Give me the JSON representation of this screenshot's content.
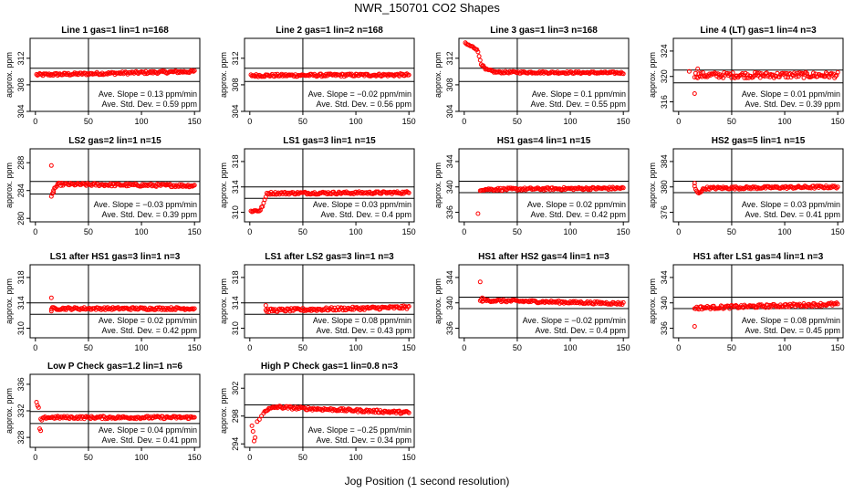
{
  "figure_title": "NWR_150701   CO2 Shapes",
  "x_axis_label": "Jog Position (1 second resolution)",
  "y_axis_label": "approx. ppm",
  "slope_label": "Ave. Slope =",
  "slope_unit": "ppm/min",
  "std_label": "Ave. Std. Dev. =",
  "std_unit": "ppm",
  "colors": {
    "points": "#ff0000",
    "axes": "#000000",
    "background": "#ffffff"
  },
  "chart_data": [
    {
      "type": "scatter",
      "title": "Line 1 gas=1 lin=1 n=168",
      "xlim": [
        -5,
        155
      ],
      "ylim": [
        304,
        315
      ],
      "xticks": [
        0,
        50,
        100,
        150
      ],
      "yticks": [
        304,
        308,
        312
      ],
      "hlines": [
        310.5,
        308.5
      ],
      "vline": 50,
      "slope": "0.13",
      "std": "0.59",
      "x_start": 1,
      "x_end": 150,
      "x_step": 1,
      "profile": [
        [
          1,
          309.5
        ],
        [
          150,
          310.0
        ]
      ],
      "noise": 0.2
    },
    {
      "type": "scatter",
      "title": "Line 2 gas=1 lin=2 n=168",
      "xlim": [
        -5,
        155
      ],
      "ylim": [
        304,
        315
      ],
      "xticks": [
        0,
        50,
        100,
        150
      ],
      "yticks": [
        304,
        308,
        312
      ],
      "hlines": [
        310.5,
        308.5
      ],
      "vline": 50,
      "slope": "−0.02",
      "std": "0.56",
      "x_start": 1,
      "x_end": 150,
      "x_step": 1,
      "profile": [
        [
          1,
          309.4
        ],
        [
          150,
          309.5
        ]
      ],
      "noise": 0.2
    },
    {
      "type": "scatter",
      "title": "Line 3 gas=1 lin=3 n=168",
      "xlim": [
        -5,
        155
      ],
      "ylim": [
        304,
        315
      ],
      "xticks": [
        0,
        50,
        100,
        150
      ],
      "yticks": [
        304,
        308,
        312
      ],
      "hlines": [
        310.5,
        308.5
      ],
      "vline": 50,
      "slope": "0.1",
      "std": "0.55",
      "x_start": 1,
      "x_end": 150,
      "x_step": 1,
      "profile": [
        [
          1,
          314.2
        ],
        [
          12,
          313.4
        ],
        [
          16,
          311.2
        ],
        [
          20,
          310.3
        ],
        [
          30,
          309.9
        ],
        [
          150,
          309.8
        ]
      ],
      "noise": 0.15
    },
    {
      "type": "scatter",
      "title": "Line 4 (LT) gas=1 lin=4 n=3",
      "xlim": [
        -5,
        155
      ],
      "ylim": [
        314.5,
        326
      ],
      "xticks": [
        0,
        50,
        100,
        150
      ],
      "yticks": [
        316,
        320,
        324
      ],
      "hlines": [
        321.0,
        319.0
      ],
      "vline": 50,
      "slope": "0.01",
      "std": "0.39",
      "x_start": 15,
      "x_end": 150,
      "x_step": 1,
      "profile": [
        [
          15,
          320.2
        ],
        [
          150,
          320.2
        ]
      ],
      "noise": 0.45,
      "outliers": [
        [
          10,
          320.8
        ],
        [
          15,
          317.3
        ],
        [
          18,
          321.2
        ]
      ]
    },
    {
      "type": "scatter",
      "title": "LS2 gas=2 lin=1 n=15",
      "xlim": [
        -5,
        155
      ],
      "ylim": [
        279.5,
        290
      ],
      "xticks": [
        0,
        50,
        100,
        150
      ],
      "yticks": [
        280,
        284,
        288
      ],
      "hlines": [
        285.3,
        283.5
      ],
      "vline": 50,
      "slope": "−0.03",
      "std": "0.39",
      "x_start": 15,
      "x_end": 150,
      "x_step": 1,
      "profile": [
        [
          15,
          283.0
        ],
        [
          18,
          284.3
        ],
        [
          22,
          284.9
        ],
        [
          150,
          284.7
        ]
      ],
      "noise": 0.2,
      "outliers": [
        [
          15,
          287.6
        ],
        [
          17,
          284.0
        ]
      ]
    },
    {
      "type": "scatter",
      "title": "LS1 gas=3 lin=1 n=15",
      "xlim": [
        -5,
        155
      ],
      "ylim": [
        308.5,
        320
      ],
      "xticks": [
        0,
        50,
        100,
        150
      ],
      "yticks": [
        310,
        314,
        318
      ],
      "hlines": [
        314.0,
        312.2
      ],
      "vline": 50,
      "slope": "0.03",
      "std": "0.4",
      "x_start": 1,
      "x_end": 150,
      "x_step": 1,
      "profile": [
        [
          1,
          310.2
        ],
        [
          10,
          310.3
        ],
        [
          14,
          311.8
        ],
        [
          16,
          313.0
        ],
        [
          150,
          313.1
        ]
      ],
      "noise": 0.2
    },
    {
      "type": "scatter",
      "title": "HS1 gas=4 lin=1 n=15",
      "xlim": [
        -5,
        155
      ],
      "ylim": [
        334.5,
        346
      ],
      "xticks": [
        0,
        50,
        100,
        150
      ],
      "yticks": [
        336,
        340,
        344
      ],
      "hlines": [
        340.9,
        339.1
      ],
      "vline": 50,
      "slope": "0.02",
      "std": "0.42",
      "x_start": 15,
      "x_end": 150,
      "x_step": 1,
      "profile": [
        [
          15,
          339.6
        ],
        [
          150,
          339.8
        ]
      ],
      "noise": 0.2,
      "outliers": [
        [
          13,
          335.8
        ]
      ]
    },
    {
      "type": "scatter",
      "title": "HS2 gas=5 lin=1 n=15",
      "xlim": [
        -5,
        155
      ],
      "ylim": [
        374.5,
        386
      ],
      "xticks": [
        0,
        50,
        100,
        150
      ],
      "yticks": [
        376,
        380,
        384
      ],
      "hlines": [
        380.9,
        379.1
      ],
      "vline": 50,
      "slope": "0.03",
      "std": "0.41",
      "x_start": 15,
      "x_end": 150,
      "x_step": 1,
      "profile": [
        [
          15,
          380.0
        ],
        [
          18,
          379.0
        ],
        [
          25,
          379.8
        ],
        [
          150,
          380.0
        ]
      ],
      "noise": 0.2,
      "outliers": [
        [
          15,
          380.6
        ]
      ]
    },
    {
      "type": "scatter",
      "title": "LS1 after HS1 gas=3 lin=1 n=3",
      "xlim": [
        -5,
        155
      ],
      "ylim": [
        308.5,
        320
      ],
      "xticks": [
        0,
        50,
        100,
        150
      ],
      "yticks": [
        310,
        314,
        318
      ],
      "hlines": [
        314.0,
        312.2
      ],
      "vline": 50,
      "slope": "0.02",
      "std": "0.42",
      "x_start": 15,
      "x_end": 150,
      "x_step": 1,
      "profile": [
        [
          15,
          313.1
        ],
        [
          150,
          313.1
        ]
      ],
      "noise": 0.2,
      "outliers": [
        [
          15,
          314.8
        ],
        [
          15,
          312.7
        ]
      ]
    },
    {
      "type": "scatter",
      "title": "LS1 after LS2 gas=3 lin=1 n=3",
      "xlim": [
        -5,
        155
      ],
      "ylim": [
        308.5,
        320
      ],
      "xticks": [
        0,
        50,
        100,
        150
      ],
      "yticks": [
        310,
        314,
        318
      ],
      "hlines": [
        314.0,
        312.2
      ],
      "vline": 50,
      "slope": "0.08",
      "std": "0.43",
      "x_start": 15,
      "x_end": 150,
      "x_step": 1,
      "profile": [
        [
          15,
          312.8
        ],
        [
          150,
          313.3
        ]
      ],
      "noise": 0.25,
      "outliers": [
        [
          15,
          313.6
        ]
      ]
    },
    {
      "type": "scatter",
      "title": "HS1 after HS2 gas=4 lin=1 n=3",
      "xlim": [
        -5,
        155
      ],
      "ylim": [
        334.5,
        346
      ],
      "xticks": [
        0,
        50,
        100,
        150
      ],
      "yticks": [
        336,
        340,
        344
      ],
      "hlines": [
        340.9,
        339.1
      ],
      "vline": 50,
      "slope": "−0.02",
      "std": "0.4",
      "x_start": 15,
      "x_end": 150,
      "x_step": 1,
      "profile": [
        [
          15,
          340.4
        ],
        [
          150,
          339.9
        ]
      ],
      "noise": 0.2,
      "outliers": [
        [
          15,
          343.3
        ],
        [
          17,
          340.8
        ]
      ]
    },
    {
      "type": "scatter",
      "title": "HS1 after LS1 gas=4 lin=1 n=3",
      "xlim": [
        -5,
        155
      ],
      "ylim": [
        334.5,
        346
      ],
      "xticks": [
        0,
        50,
        100,
        150
      ],
      "yticks": [
        336,
        340,
        344
      ],
      "hlines": [
        340.9,
        339.1
      ],
      "vline": 50,
      "slope": "0.08",
      "std": "0.45",
      "x_start": 15,
      "x_end": 150,
      "x_step": 1,
      "profile": [
        [
          15,
          339.2
        ],
        [
          150,
          339.8
        ]
      ],
      "noise": 0.25,
      "outliers": [
        [
          15,
          336.3
        ]
      ]
    },
    {
      "type": "scatter",
      "title": "Low P Check gas=1.2 lin=1 n=6",
      "xlim": [
        -5,
        155
      ],
      "ylim": [
        326.5,
        337.5
      ],
      "xticks": [
        0,
        50,
        100,
        150
      ],
      "yticks": [
        328,
        332,
        336
      ],
      "hlines": [
        331.9,
        330.1
      ],
      "vline": 50,
      "slope": "0.04",
      "std": "0.41",
      "x_start": 5,
      "x_end": 150,
      "x_step": 1,
      "profile": [
        [
          5,
          330.6
        ],
        [
          10,
          331.0
        ],
        [
          150,
          331.0
        ]
      ],
      "noise": 0.2,
      "outliers": [
        [
          1,
          333.3
        ],
        [
          2,
          332.8
        ],
        [
          3,
          332.5
        ],
        [
          4,
          329.3
        ],
        [
          5,
          329.0
        ]
      ]
    },
    {
      "type": "scatter",
      "title": "High P Check gas=1 lin=0.8 n=3",
      "xlim": [
        -5,
        155
      ],
      "ylim": [
        293.5,
        304
      ],
      "xticks": [
        0,
        50,
        100,
        150
      ],
      "yticks": [
        294,
        298,
        302
      ],
      "hlines": [
        299.6,
        297.8
      ],
      "vline": 50,
      "slope": "−0.25",
      "std": "0.34",
      "x_start": 14,
      "x_end": 150,
      "x_step": 1,
      "profile": [
        [
          14,
          298.8
        ],
        [
          25,
          299.3
        ],
        [
          50,
          299.1
        ],
        [
          150,
          298.5
        ]
      ],
      "noise": 0.2,
      "outliers": [
        [
          2,
          296.6
        ],
        [
          3,
          295.8
        ],
        [
          4,
          294.4
        ],
        [
          5,
          294.9
        ],
        [
          7,
          297.2
        ],
        [
          9,
          297.5
        ],
        [
          11,
          298.0
        ],
        [
          13,
          298.4
        ]
      ]
    }
  ]
}
